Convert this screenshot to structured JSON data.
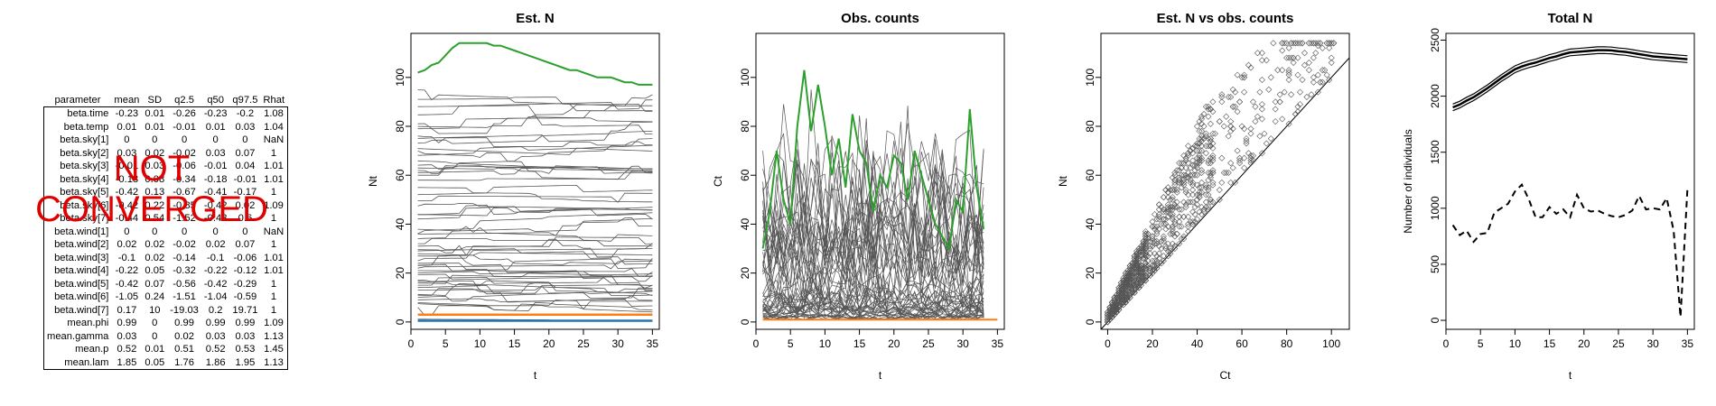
{
  "table": {
    "columns": [
      "parameter",
      "mean",
      "SD",
      "q2.5",
      "q50",
      "q97.5",
      "Rhat"
    ],
    "rows": [
      [
        "beta.time",
        "-0.23",
        "0.01",
        "-0.26",
        "-0.23",
        "-0.2",
        "1.08"
      ],
      [
        "beta.temp",
        "0.01",
        "0.01",
        "-0.01",
        "0.01",
        "0.03",
        "1.04"
      ],
      [
        "beta.sky[1]",
        "0",
        "0",
        "0",
        "0",
        "0",
        "NaN"
      ],
      [
        "beta.sky[2]",
        "0.03",
        "0.02",
        "-0.02",
        "0.03",
        "0.07",
        "1"
      ],
      [
        "beta.sky[3]",
        "-0.01",
        "0.03",
        "-0.06",
        "-0.01",
        "0.04",
        "1.01"
      ],
      [
        "beta.sky[4]",
        "-0.18",
        "0.08",
        "-0.34",
        "-0.18",
        "-0.01",
        "1.01"
      ],
      [
        "beta.sky[5]",
        "-0.42",
        "0.13",
        "-0.67",
        "-0.41",
        "-0.17",
        "1"
      ],
      [
        "beta.sky[6]",
        "-0.42",
        "0.22",
        "-0.85",
        "-0.42",
        "0.02",
        "1.09"
      ],
      [
        "beta.sky[7]",
        "-0.44",
        "0.54",
        "-1.52",
        "-0.43",
        "0.6",
        "1"
      ],
      [
        "beta.wind[1]",
        "0",
        "0",
        "0",
        "0",
        "0",
        "NaN"
      ],
      [
        "beta.wind[2]",
        "0.02",
        "0.02",
        "-0.02",
        "0.02",
        "0.07",
        "1"
      ],
      [
        "beta.wind[3]",
        "-0.1",
        "0.02",
        "-0.14",
        "-0.1",
        "-0.06",
        "1.01"
      ],
      [
        "beta.wind[4]",
        "-0.22",
        "0.05",
        "-0.32",
        "-0.22",
        "-0.12",
        "1.01"
      ],
      [
        "beta.wind[5]",
        "-0.42",
        "0.07",
        "-0.56",
        "-0.42",
        "-0.29",
        "1"
      ],
      [
        "beta.wind[6]",
        "-1.05",
        "0.24",
        "-1.51",
        "-1.04",
        "-0.59",
        "1"
      ],
      [
        "beta.wind[7]",
        "0.17",
        "10",
        "-19.03",
        "0.2",
        "19.71",
        "1"
      ],
      [
        "mean.phi",
        "0.99",
        "0",
        "0.99",
        "0.99",
        "0.99",
        "1.09"
      ],
      [
        "mean.gamma",
        "0.03",
        "0",
        "0.02",
        "0.03",
        "0.03",
        "1.13"
      ],
      [
        "mean.p",
        "0.52",
        "0.01",
        "0.51",
        "0.52",
        "0.53",
        "1.45"
      ],
      [
        "mean.lam",
        "1.85",
        "0.05",
        "1.76",
        "1.86",
        "1.95",
        "1.13"
      ]
    ]
  },
  "stamp": {
    "line1": "NOT",
    "line2": "CONVERGED",
    "color": "#e00000"
  },
  "chart_data": [
    {
      "id": "estN",
      "type": "line",
      "title": "Est. N",
      "xlabel": "t",
      "ylabel": "Nt",
      "xlim": [
        0,
        36
      ],
      "ylim": [
        -3,
        118
      ],
      "xticks": [
        0,
        5,
        10,
        15,
        20,
        25,
        30,
        35
      ],
      "yticks": [
        0,
        20,
        40,
        60,
        80,
        100
      ],
      "background_series": {
        "color": "#555555",
        "levels": [
          95,
          91,
          88,
          85,
          82,
          80,
          78,
          76,
          75,
          73,
          71,
          70,
          68,
          66,
          64,
          63,
          62,
          61,
          60,
          58,
          55,
          52,
          49,
          46,
          44,
          42,
          40,
          38,
          36,
          34,
          33,
          32,
          31,
          30,
          29,
          28,
          27,
          26,
          25,
          24,
          23,
          22,
          21,
          20,
          19,
          18,
          17,
          16,
          15,
          14,
          13,
          12,
          11,
          10,
          9,
          8,
          7,
          6,
          5
        ]
      },
      "series": [
        {
          "color": "#2ca02c",
          "x": [
            1,
            2,
            3,
            4,
            5,
            6,
            7,
            8,
            9,
            10,
            11,
            12,
            13,
            14,
            15,
            16,
            17,
            18,
            19,
            20,
            21,
            22,
            23,
            24,
            25,
            26,
            27,
            28,
            29,
            30,
            31,
            32,
            33,
            34,
            35
          ],
          "y": [
            102,
            103,
            105,
            106,
            109,
            112,
            114,
            114,
            114,
            114,
            114,
            113,
            113,
            112,
            111,
            110,
            109,
            108,
            107,
            106,
            105,
            104,
            103,
            103,
            102,
            101,
            100,
            100,
            100,
            99,
            98,
            98,
            97,
            97,
            97
          ]
        },
        {
          "color": "#ff7f0e",
          "x": [
            1,
            35
          ],
          "y": [
            3,
            3
          ]
        },
        {
          "color": "#1f77b4",
          "x": [
            1,
            35
          ],
          "y": [
            0.5,
            0.5
          ]
        }
      ]
    },
    {
      "id": "obs",
      "type": "line",
      "title": "Obs. counts",
      "xlabel": "t",
      "ylabel": "Ct",
      "xlim": [
        0,
        36
      ],
      "ylim": [
        -3,
        118
      ],
      "xticks": [
        0,
        5,
        10,
        15,
        20,
        25,
        30,
        35
      ],
      "yticks": [
        0,
        20,
        40,
        60,
        80,
        100
      ],
      "background_series": {
        "color": "#555555",
        "count": 55
      },
      "series": [
        {
          "color": "#2ca02c",
          "x": [
            1,
            2,
            3,
            4,
            5,
            6,
            7,
            8,
            9,
            10,
            11,
            12,
            13,
            14,
            15,
            16,
            17,
            18,
            19,
            20,
            21,
            22,
            23,
            24,
            25,
            26,
            27,
            28,
            29,
            30,
            31,
            32,
            33
          ],
          "y": [
            30,
            45,
            70,
            50,
            40,
            80,
            103,
            78,
            97,
            80,
            60,
            75,
            55,
            85,
            70,
            65,
            45,
            60,
            55,
            68,
            65,
            50,
            70,
            60,
            50,
            40,
            35,
            30,
            50,
            45,
            87,
            55,
            38
          ]
        },
        {
          "color": "#ff7f0e",
          "x": [
            1,
            35
          ],
          "y": [
            1,
            1
          ]
        }
      ]
    },
    {
      "id": "scatter",
      "type": "scatter",
      "title": "Est. N vs obs. counts",
      "xlabel": "Ct",
      "ylabel": "Nt",
      "xlim": [
        -3,
        108
      ],
      "ylim": [
        -3,
        118
      ],
      "xticks": [
        0,
        20,
        40,
        60,
        80,
        100
      ],
      "yticks": [
        0,
        20,
        40,
        60,
        80,
        100
      ],
      "abline": [
        0,
        1
      ],
      "n_points": 1100
    },
    {
      "id": "total",
      "type": "line",
      "title": "Total N",
      "xlabel": "t",
      "ylabel": "Number of individuals",
      "xlim": [
        0,
        36
      ],
      "ylim": [
        -80,
        2560
      ],
      "xticks": [
        0,
        5,
        10,
        15,
        20,
        25,
        30,
        35
      ],
      "yticks": [
        0,
        500,
        1000,
        1500,
        2000,
        2500
      ],
      "series": [
        {
          "style": "solid",
          "x": [
            1,
            2,
            3,
            4,
            5,
            6,
            7,
            8,
            9,
            10,
            11,
            12,
            13,
            14,
            15,
            16,
            17,
            18,
            19,
            20,
            21,
            22,
            23,
            24,
            25,
            26,
            27,
            28,
            29,
            30,
            31,
            32,
            33,
            34,
            35
          ],
          "y": [
            1900,
            1925,
            1960,
            1990,
            2030,
            2070,
            2115,
            2160,
            2200,
            2240,
            2265,
            2285,
            2300,
            2320,
            2340,
            2355,
            2375,
            2390,
            2395,
            2400,
            2405,
            2410,
            2410,
            2408,
            2400,
            2395,
            2385,
            2375,
            2365,
            2355,
            2350,
            2345,
            2340,
            2335,
            2330
          ]
        },
        {
          "style": "dashed",
          "x": [
            1,
            2,
            3,
            4,
            5,
            6,
            7,
            8,
            9,
            10,
            11,
            12,
            13,
            14,
            15,
            16,
            17,
            18,
            19,
            20,
            21,
            22,
            23,
            24,
            25,
            26,
            27,
            28,
            29,
            30,
            31,
            32,
            33,
            34,
            35
          ],
          "y": [
            850,
            760,
            800,
            700,
            770,
            780,
            960,
            1000,
            1040,
            1150,
            1210,
            1080,
            920,
            920,
            1010,
            950,
            990,
            920,
            1120,
            1000,
            970,
            980,
            950,
            930,
            920,
            940,
            980,
            1110,
            990,
            1000,
            990,
            1090,
            800,
            30,
            1180
          ]
        }
      ]
    }
  ]
}
